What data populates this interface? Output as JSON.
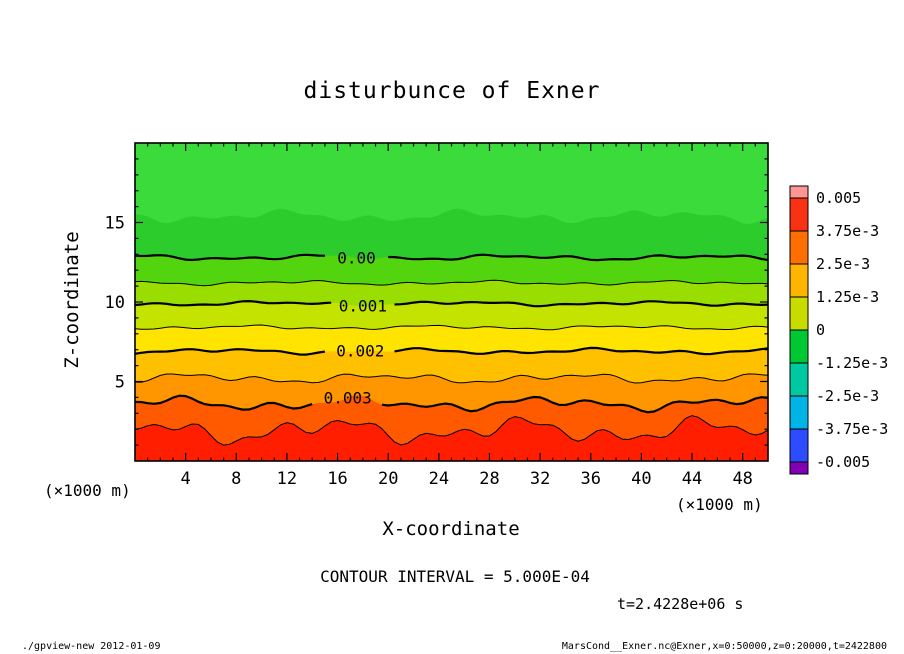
{
  "title": "disturbunce of Exner",
  "footer_left": "./gpview-new  2012-01-09",
  "footer_right": "MarsCond__Exner.nc@Exner,x=0:50000,z=0:20000,t=2422800",
  "annotations": {
    "contour_interval": "CONTOUR INTERVAL = 5.000E-04",
    "time": "t=2.4228e+06 s",
    "unit_left": "(×1000 m)",
    "unit_right": "(×1000 m)"
  },
  "chart_data": {
    "type": "filled_contour",
    "title": "disturbunce of Exner",
    "xlabel": "X-coordinate",
    "ylabel": "Z-coordinate",
    "x_unit": "(×1000 m)",
    "y_unit": "(×1000 m)",
    "xlim": [
      0,
      50
    ],
    "ylim": [
      0,
      20
    ],
    "xticks": [
      4,
      8,
      12,
      16,
      20,
      24,
      28,
      32,
      36,
      40,
      44,
      48
    ],
    "yticks": [
      5,
      10,
      15
    ],
    "contour_interval": 0.0005,
    "time_seconds": "2.4228e+06",
    "grid": false,
    "band_colors": [
      "#3bdb3b",
      "#2ccc2c",
      "#52d50e",
      "#9add00",
      "#c4e400",
      "#ffe400",
      "#ffc000",
      "#ff9600",
      "#ff5a00",
      "#ff1e00"
    ],
    "boundaries": [
      {
        "z": 15.4,
        "amp": 0.5,
        "seed": 11,
        "line": "none",
        "label": "",
        "label_x": 0
      },
      {
        "z": 12.8,
        "amp": 0.22,
        "seed": 2,
        "line": "thick",
        "label": "0.00",
        "label_x": 17.5
      },
      {
        "z": 11.2,
        "amp": 0.18,
        "seed": 3,
        "line": "thin",
        "label": "",
        "label_x": 0
      },
      {
        "z": 9.9,
        "amp": 0.18,
        "seed": 4,
        "line": "thick",
        "label": "0.001",
        "label_x": 18
      },
      {
        "z": 8.4,
        "amp": 0.18,
        "seed": 5,
        "line": "thin",
        "label": "",
        "label_x": 0
      },
      {
        "z": 6.9,
        "amp": 0.22,
        "seed": 6,
        "line": "thick",
        "label": "0.002",
        "label_x": 17.8
      },
      {
        "z": 5.2,
        "amp": 0.4,
        "seed": 7,
        "line": "thin",
        "label": "",
        "label_x": 0
      },
      {
        "z": 3.6,
        "amp": 0.55,
        "seed": 8,
        "line": "thick",
        "label": "0.003",
        "label_x": 16.8
      },
      {
        "z": 1.9,
        "amp": 1.05,
        "seed": 9,
        "line": "thin",
        "label": "",
        "label_x": 0
      }
    ],
    "colorbar": {
      "labels": [
        "0.005",
        "3.75e-3",
        "2.5e-3",
        "1.25e-3",
        "0",
        "-1.25e-3",
        "-2.5e-3",
        "-3.75e-3",
        "-0.005"
      ],
      "colors": [
        "#ff9696",
        "#fa3214",
        "#ff6e00",
        "#ffb400",
        "#c8dc00",
        "#00c832",
        "#00c8a0",
        "#00b4e6",
        "#2d4bff",
        "#8200b4"
      ]
    }
  }
}
